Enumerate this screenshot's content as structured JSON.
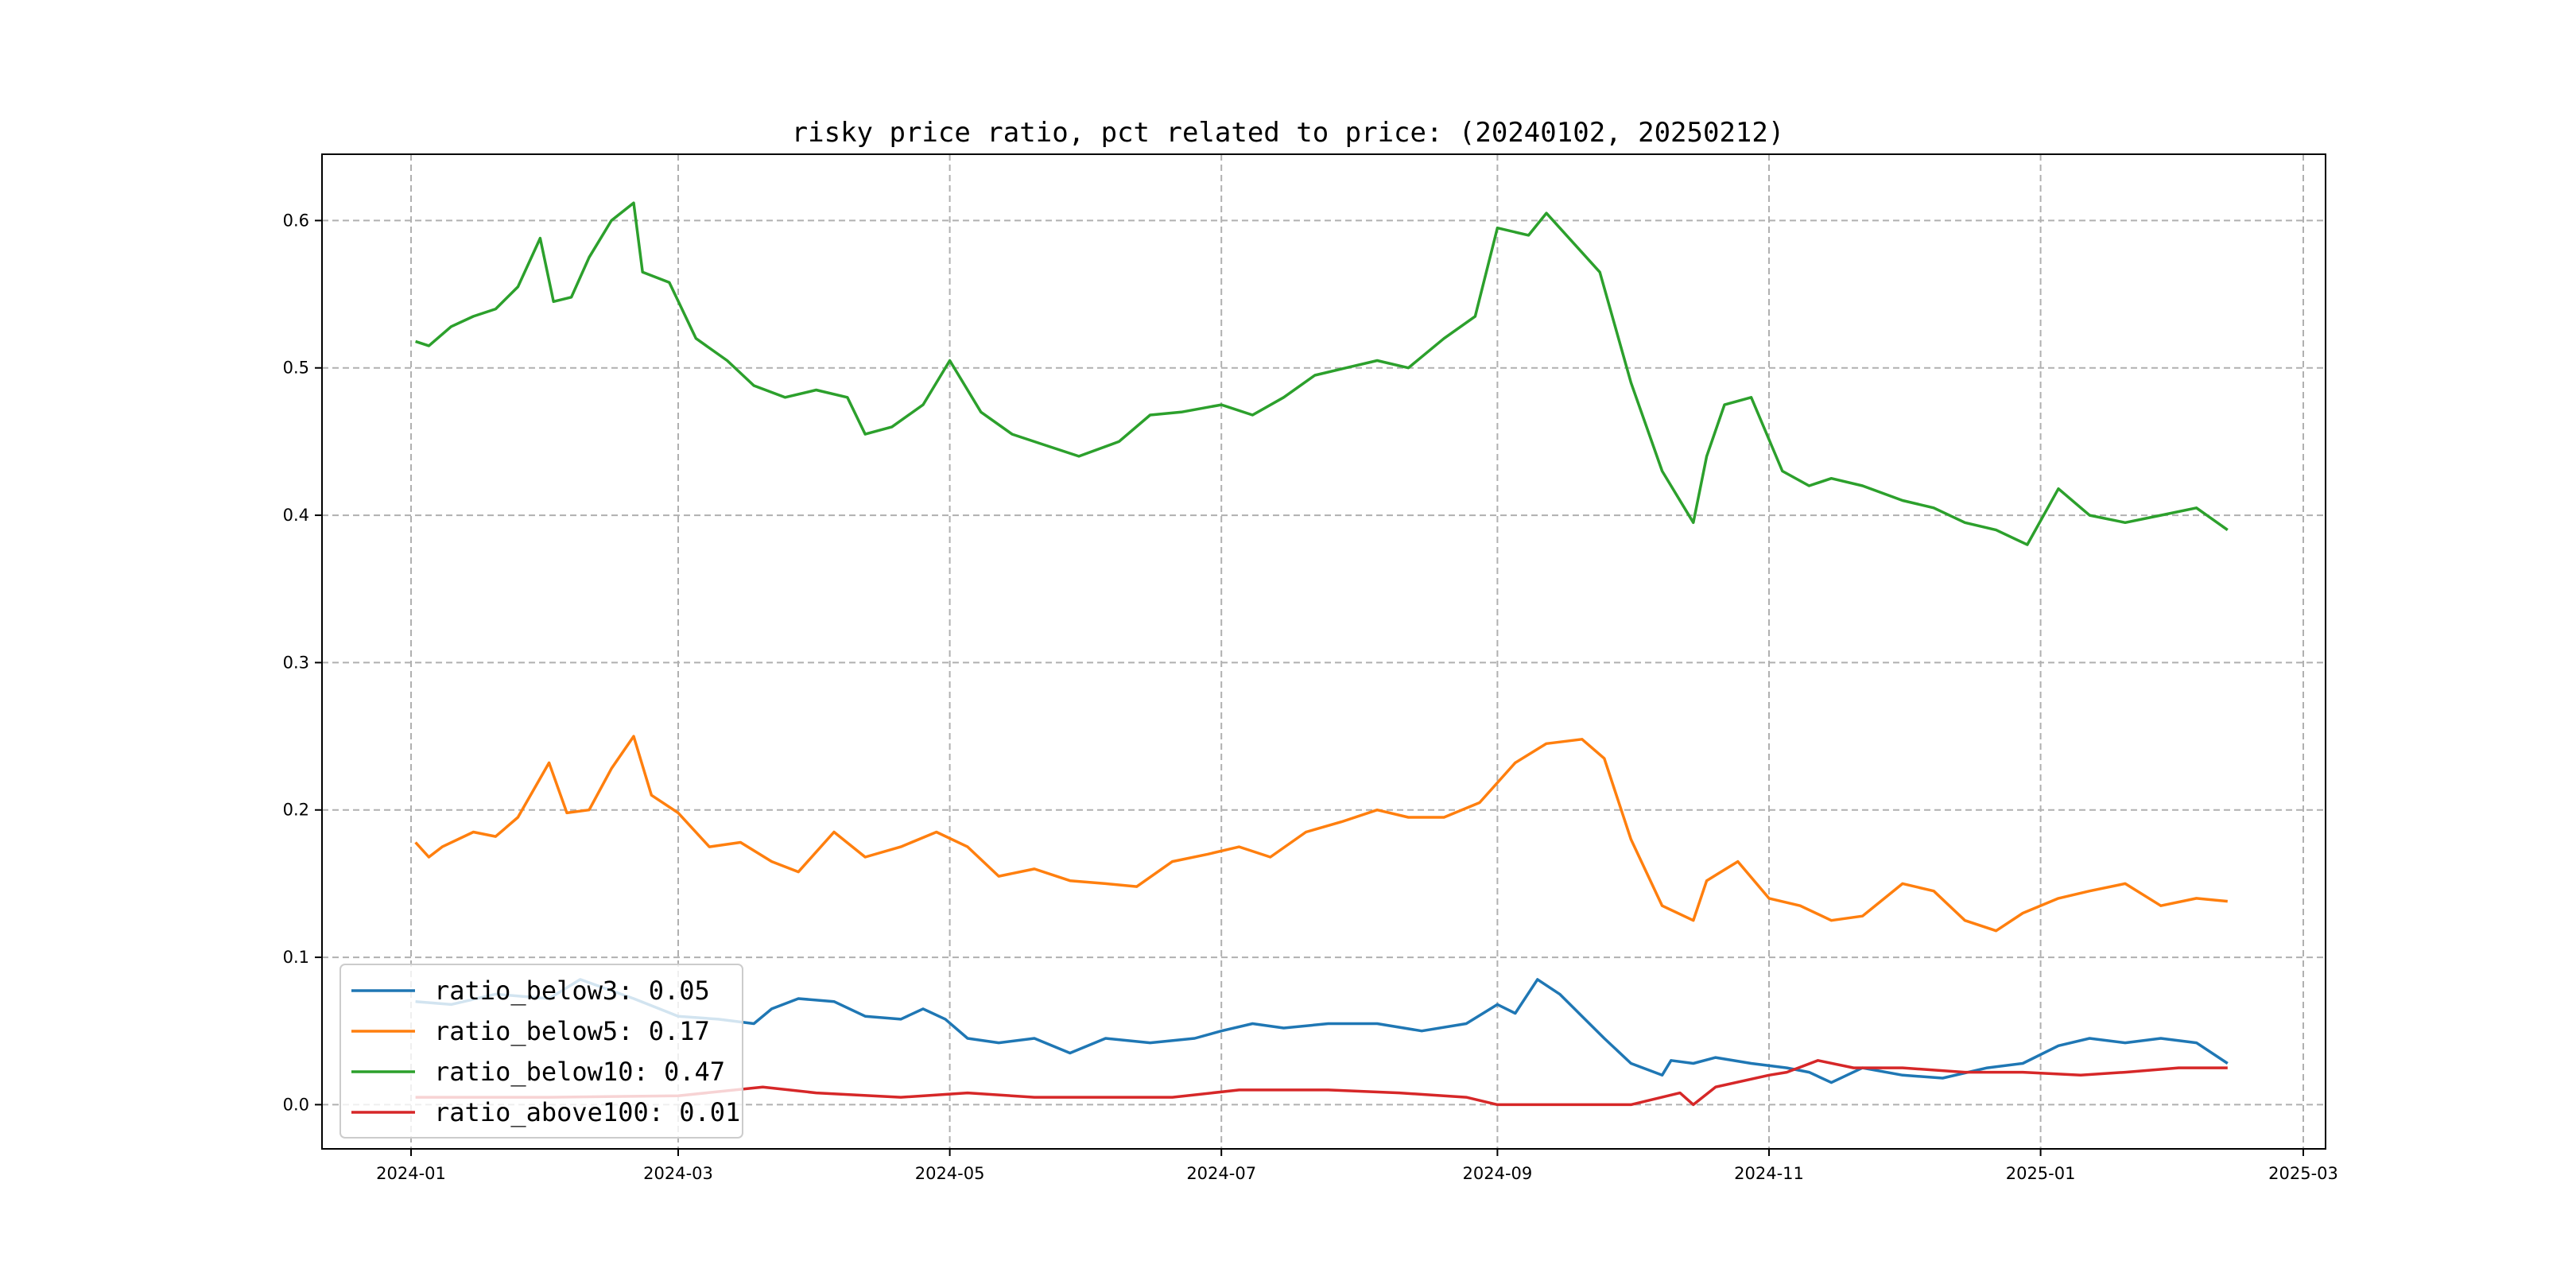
{
  "chart_data": {
    "type": "line",
    "title": "risky price ratio, pct related to price: (20240102, 20250212)",
    "xlabel": "",
    "ylabel": "",
    "xlim": [
      "2023-12-12",
      "2025-03-06"
    ],
    "ylim": [
      -0.03,
      0.645
    ],
    "grid": true,
    "legend_position": "lower-left",
    "x_ticks": [
      "2024-01",
      "2024-03",
      "2024-05",
      "2024-07",
      "2024-09",
      "2024-11",
      "2025-01",
      "2025-03"
    ],
    "y_ticks": [
      "0.0",
      "0.1",
      "0.2",
      "0.3",
      "0.4",
      "0.5",
      "0.6"
    ],
    "series": [
      {
        "name": "ratio_below3",
        "legend_label": "ratio_below3: 0.05",
        "color": "#1f77b4",
        "points": [
          [
            "2024-01-02",
            0.07
          ],
          [
            "2024-01-10",
            0.068
          ],
          [
            "2024-01-20",
            0.075
          ],
          [
            "2024-02-01",
            0.072
          ],
          [
            "2024-02-08",
            0.085
          ],
          [
            "2024-02-20",
            0.072
          ],
          [
            "2024-03-01",
            0.06
          ],
          [
            "2024-03-10",
            0.058
          ],
          [
            "2024-03-18",
            0.055
          ],
          [
            "2024-03-22",
            0.065
          ],
          [
            "2024-03-28",
            0.072
          ],
          [
            "2024-04-05",
            0.07
          ],
          [
            "2024-04-12",
            0.06
          ],
          [
            "2024-04-20",
            0.058
          ],
          [
            "2024-04-25",
            0.065
          ],
          [
            "2024-04-30",
            0.058
          ],
          [
            "2024-05-05",
            0.045
          ],
          [
            "2024-05-12",
            0.042
          ],
          [
            "2024-05-20",
            0.045
          ],
          [
            "2024-05-28",
            0.035
          ],
          [
            "2024-06-05",
            0.045
          ],
          [
            "2024-06-15",
            0.042
          ],
          [
            "2024-06-25",
            0.045
          ],
          [
            "2024-07-01",
            0.05
          ],
          [
            "2024-07-08",
            0.055
          ],
          [
            "2024-07-15",
            0.052
          ],
          [
            "2024-07-25",
            0.055
          ],
          [
            "2024-08-05",
            0.055
          ],
          [
            "2024-08-15",
            0.05
          ],
          [
            "2024-08-25",
            0.055
          ],
          [
            "2024-09-01",
            0.068
          ],
          [
            "2024-09-05",
            0.062
          ],
          [
            "2024-09-10",
            0.085
          ],
          [
            "2024-09-15",
            0.075
          ],
          [
            "2024-09-20",
            0.06
          ],
          [
            "2024-09-25",
            0.045
          ],
          [
            "2024-10-01",
            0.028
          ],
          [
            "2024-10-08",
            0.02
          ],
          [
            "2024-10-10",
            0.03
          ],
          [
            "2024-10-15",
            0.028
          ],
          [
            "2024-10-20",
            0.032
          ],
          [
            "2024-10-28",
            0.028
          ],
          [
            "2024-11-05",
            0.025
          ],
          [
            "2024-11-10",
            0.022
          ],
          [
            "2024-11-15",
            0.015
          ],
          [
            "2024-11-22",
            0.025
          ],
          [
            "2024-12-01",
            0.02
          ],
          [
            "2024-12-10",
            0.018
          ],
          [
            "2024-12-20",
            0.025
          ],
          [
            "2024-12-28",
            0.028
          ],
          [
            "2025-01-05",
            0.04
          ],
          [
            "2025-01-12",
            0.045
          ],
          [
            "2025-01-20",
            0.042
          ],
          [
            "2025-01-28",
            0.045
          ],
          [
            "2025-02-05",
            0.042
          ],
          [
            "2025-02-12",
            0.028
          ]
        ]
      },
      {
        "name": "ratio_below5",
        "legend_label": "ratio_below5: 0.17",
        "color": "#ff7f0e",
        "points": [
          [
            "2024-01-02",
            0.178
          ],
          [
            "2024-01-05",
            0.168
          ],
          [
            "2024-01-08",
            0.175
          ],
          [
            "2024-01-15",
            0.185
          ],
          [
            "2024-01-20",
            0.182
          ],
          [
            "2024-01-25",
            0.195
          ],
          [
            "2024-02-01",
            0.232
          ],
          [
            "2024-02-05",
            0.198
          ],
          [
            "2024-02-10",
            0.2
          ],
          [
            "2024-02-15",
            0.228
          ],
          [
            "2024-02-20",
            0.25
          ],
          [
            "2024-02-24",
            0.21
          ],
          [
            "2024-03-01",
            0.198
          ],
          [
            "2024-03-08",
            0.175
          ],
          [
            "2024-03-15",
            0.178
          ],
          [
            "2024-03-22",
            0.165
          ],
          [
            "2024-03-28",
            0.158
          ],
          [
            "2024-04-05",
            0.185
          ],
          [
            "2024-04-12",
            0.168
          ],
          [
            "2024-04-20",
            0.175
          ],
          [
            "2024-04-28",
            0.185
          ],
          [
            "2024-05-05",
            0.175
          ],
          [
            "2024-05-12",
            0.155
          ],
          [
            "2024-05-20",
            0.16
          ],
          [
            "2024-05-28",
            0.152
          ],
          [
            "2024-06-05",
            0.15
          ],
          [
            "2024-06-12",
            0.148
          ],
          [
            "2024-06-20",
            0.165
          ],
          [
            "2024-06-28",
            0.17
          ],
          [
            "2024-07-05",
            0.175
          ],
          [
            "2024-07-12",
            0.168
          ],
          [
            "2024-07-20",
            0.185
          ],
          [
            "2024-07-28",
            0.192
          ],
          [
            "2024-08-05",
            0.2
          ],
          [
            "2024-08-12",
            0.195
          ],
          [
            "2024-08-20",
            0.195
          ],
          [
            "2024-08-28",
            0.205
          ],
          [
            "2024-09-05",
            0.232
          ],
          [
            "2024-09-12",
            0.245
          ],
          [
            "2024-09-20",
            0.248
          ],
          [
            "2024-09-25",
            0.235
          ],
          [
            "2024-10-01",
            0.18
          ],
          [
            "2024-10-08",
            0.135
          ],
          [
            "2024-10-15",
            0.125
          ],
          [
            "2024-10-18",
            0.152
          ],
          [
            "2024-10-25",
            0.165
          ],
          [
            "2024-11-01",
            0.14
          ],
          [
            "2024-11-08",
            0.135
          ],
          [
            "2024-11-15",
            0.125
          ],
          [
            "2024-11-22",
            0.128
          ],
          [
            "2024-12-01",
            0.15
          ],
          [
            "2024-12-08",
            0.145
          ],
          [
            "2024-12-15",
            0.125
          ],
          [
            "2024-12-22",
            0.118
          ],
          [
            "2024-12-28",
            0.13
          ],
          [
            "2025-01-05",
            0.14
          ],
          [
            "2025-01-12",
            0.145
          ],
          [
            "2025-01-20",
            0.15
          ],
          [
            "2025-01-28",
            0.135
          ],
          [
            "2025-02-05",
            0.14
          ],
          [
            "2025-02-12",
            0.138
          ]
        ]
      },
      {
        "name": "ratio_below10",
        "legend_label": "ratio_below10: 0.47",
        "color": "#2ca02c",
        "points": [
          [
            "2024-01-02",
            0.518
          ],
          [
            "2024-01-05",
            0.515
          ],
          [
            "2024-01-10",
            0.528
          ],
          [
            "2024-01-15",
            0.535
          ],
          [
            "2024-01-20",
            0.54
          ],
          [
            "2024-01-25",
            0.555
          ],
          [
            "2024-01-30",
            0.588
          ],
          [
            "2024-02-02",
            0.545
          ],
          [
            "2024-02-06",
            0.548
          ],
          [
            "2024-02-10",
            0.575
          ],
          [
            "2024-02-15",
            0.6
          ],
          [
            "2024-02-20",
            0.612
          ],
          [
            "2024-02-22",
            0.565
          ],
          [
            "2024-02-28",
            0.558
          ],
          [
            "2024-03-05",
            0.52
          ],
          [
            "2024-03-12",
            0.505
          ],
          [
            "2024-03-18",
            0.488
          ],
          [
            "2024-03-25",
            0.48
          ],
          [
            "2024-04-01",
            0.485
          ],
          [
            "2024-04-08",
            0.48
          ],
          [
            "2024-04-12",
            0.455
          ],
          [
            "2024-04-18",
            0.46
          ],
          [
            "2024-04-25",
            0.475
          ],
          [
            "2024-05-01",
            0.505
          ],
          [
            "2024-05-08",
            0.47
          ],
          [
            "2024-05-15",
            0.455
          ],
          [
            "2024-05-22",
            0.448
          ],
          [
            "2024-05-30",
            0.44
          ],
          [
            "2024-06-08",
            0.45
          ],
          [
            "2024-06-15",
            0.468
          ],
          [
            "2024-06-22",
            0.47
          ],
          [
            "2024-07-01",
            0.475
          ],
          [
            "2024-07-08",
            0.468
          ],
          [
            "2024-07-15",
            0.48
          ],
          [
            "2024-07-22",
            0.495
          ],
          [
            "2024-07-29",
            0.5
          ],
          [
            "2024-08-05",
            0.505
          ],
          [
            "2024-08-12",
            0.5
          ],
          [
            "2024-08-20",
            0.52
          ],
          [
            "2024-08-27",
            0.535
          ],
          [
            "2024-09-01",
            0.595
          ],
          [
            "2024-09-08",
            0.59
          ],
          [
            "2024-09-12",
            0.605
          ],
          [
            "2024-09-18",
            0.585
          ],
          [
            "2024-09-24",
            0.565
          ],
          [
            "2024-10-01",
            0.49
          ],
          [
            "2024-10-08",
            0.43
          ],
          [
            "2024-10-15",
            0.395
          ],
          [
            "2024-10-18",
            0.44
          ],
          [
            "2024-10-22",
            0.475
          ],
          [
            "2024-10-28",
            0.48
          ],
          [
            "2024-11-04",
            0.43
          ],
          [
            "2024-11-10",
            0.42
          ],
          [
            "2024-11-15",
            0.425
          ],
          [
            "2024-11-22",
            0.42
          ],
          [
            "2024-12-01",
            0.41
          ],
          [
            "2024-12-08",
            0.405
          ],
          [
            "2024-12-15",
            0.395
          ],
          [
            "2024-12-22",
            0.39
          ],
          [
            "2024-12-29",
            0.38
          ],
          [
            "2025-01-05",
            0.418
          ],
          [
            "2025-01-12",
            0.4
          ],
          [
            "2025-01-20",
            0.395
          ],
          [
            "2025-01-28",
            0.4
          ],
          [
            "2025-02-05",
            0.405
          ],
          [
            "2025-02-12",
            0.39
          ]
        ]
      },
      {
        "name": "ratio_above100",
        "legend_label": "ratio_above100: 0.01",
        "color": "#d62728",
        "points": [
          [
            "2024-01-02",
            0.005
          ],
          [
            "2024-02-01",
            0.005
          ],
          [
            "2024-03-01",
            0.006
          ],
          [
            "2024-03-20",
            0.012
          ],
          [
            "2024-04-01",
            0.008
          ],
          [
            "2024-04-20",
            0.005
          ],
          [
            "2024-05-05",
            0.008
          ],
          [
            "2024-05-20",
            0.005
          ],
          [
            "2024-06-20",
            0.005
          ],
          [
            "2024-07-05",
            0.01
          ],
          [
            "2024-07-25",
            0.01
          ],
          [
            "2024-08-10",
            0.008
          ],
          [
            "2024-08-25",
            0.005
          ],
          [
            "2024-09-01",
            0.0
          ],
          [
            "2024-10-01",
            0.0
          ],
          [
            "2024-10-12",
            0.008
          ],
          [
            "2024-10-15",
            0.0
          ],
          [
            "2024-10-20",
            0.012
          ],
          [
            "2024-11-01",
            0.02
          ],
          [
            "2024-11-05",
            0.022
          ],
          [
            "2024-11-12",
            0.03
          ],
          [
            "2024-11-20",
            0.025
          ],
          [
            "2024-12-01",
            0.025
          ],
          [
            "2024-12-15",
            0.022
          ],
          [
            "2024-12-28",
            0.022
          ],
          [
            "2025-01-10",
            0.02
          ],
          [
            "2025-01-20",
            0.022
          ],
          [
            "2025-02-01",
            0.025
          ],
          [
            "2025-02-12",
            0.025
          ]
        ]
      }
    ]
  }
}
